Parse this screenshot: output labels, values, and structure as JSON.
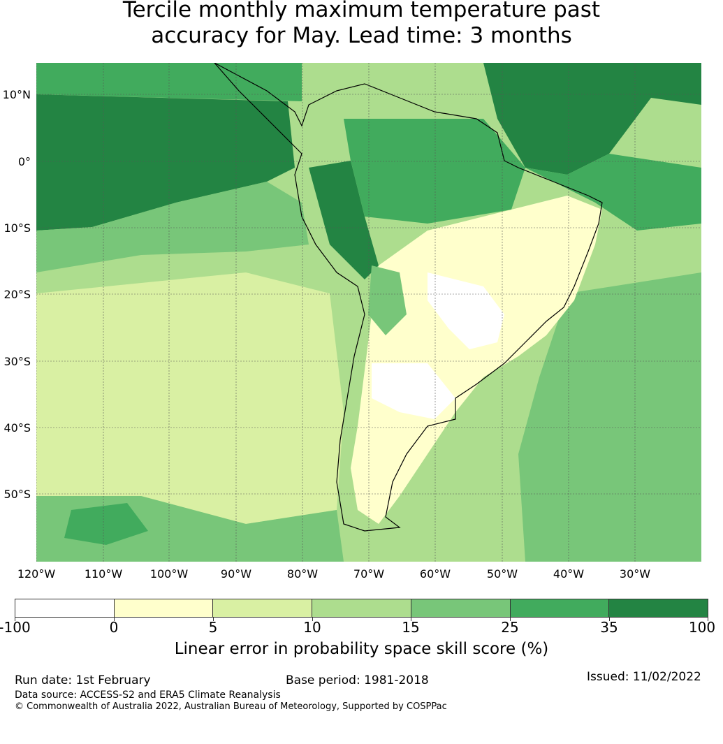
{
  "title_line1": "Tercile monthly maximum temperature past",
  "title_line2": "accuracy for May. Lead time: 3 months",
  "lat_labels": [
    "10°N",
    "0°",
    "10°S",
    "20°S",
    "30°S",
    "40°S",
    "50°S"
  ],
  "lon_labels": [
    "120°W",
    "110°W",
    "100°W",
    "90°W",
    "80°W",
    "70°W",
    "60°W",
    "50°W",
    "40°W",
    "30°W"
  ],
  "colorbar": {
    "ticks": [
      "-100",
      "0",
      "5",
      "10",
      "15",
      "25",
      "35",
      "100"
    ],
    "colors": [
      "#ffffff",
      "#ffffcc",
      "#d9f0a3",
      "#addd8e",
      "#78c679",
      "#41ab5d",
      "#238443"
    ],
    "label": "Linear error in probability space skill score (%)"
  },
  "run_date": "Run date: 1st February",
  "base_period": "Base period: 1981-2018",
  "issued": "Issued: 11/02/2022",
  "data_source": "Data source: ACCESS-S2 and ERA5 Climate Reanalysis",
  "copyright": "© Commonwealth of Australia 2022, Australian Bureau of Meteorology, Supported by COSPPac"
}
